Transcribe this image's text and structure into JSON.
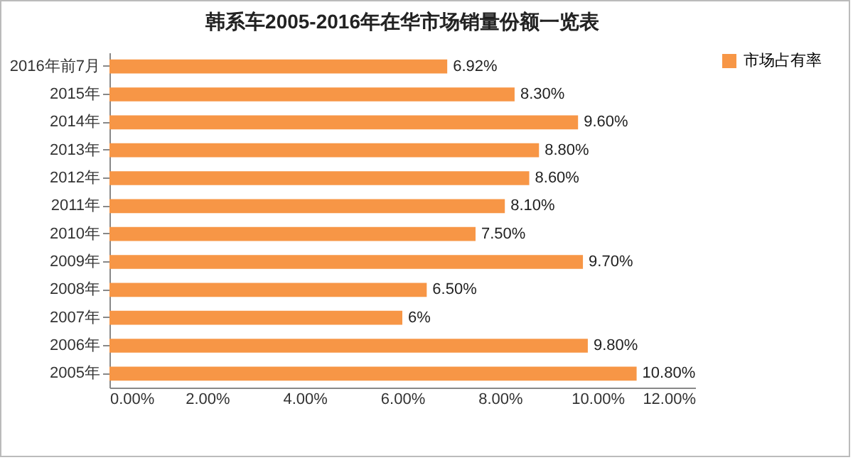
{
  "chart_data": {
    "type": "bar",
    "orientation": "horizontal",
    "title": "韩系车2005-2016年在华市场销量份额一览表",
    "categories": [
      "2016年前7月",
      "2015年",
      "2014年",
      "2013年",
      "2012年",
      "2011年",
      "2010年",
      "2009年",
      "2008年",
      "2007年",
      "2006年",
      "2005年"
    ],
    "series": [
      {
        "name": "市场占有率",
        "color": "#f79646",
        "values": [
          6.92,
          8.3,
          9.6,
          8.8,
          8.6,
          8.1,
          7.5,
          9.7,
          6.5,
          6,
          9.8,
          10.8
        ],
        "value_labels": [
          "6.92%",
          "8.30%",
          "9.60%",
          "8.80%",
          "8.60%",
          "8.10%",
          "7.50%",
          "9.70%",
          "6.50%",
          "6%",
          "9.80%",
          "10.80%"
        ]
      }
    ],
    "xlim": [
      0,
      12
    ],
    "xticks": [
      {
        "value": 0,
        "label": "0.00%"
      },
      {
        "value": 2,
        "label": "2.00%"
      },
      {
        "value": 4,
        "label": "4.00%"
      },
      {
        "value": 6,
        "label": "6.00%"
      },
      {
        "value": 8,
        "label": "8.00%"
      },
      {
        "value": 10,
        "label": "10.00%"
      },
      {
        "value": 12,
        "label": "12.00%"
      }
    ],
    "grid": false,
    "legend": "right"
  }
}
